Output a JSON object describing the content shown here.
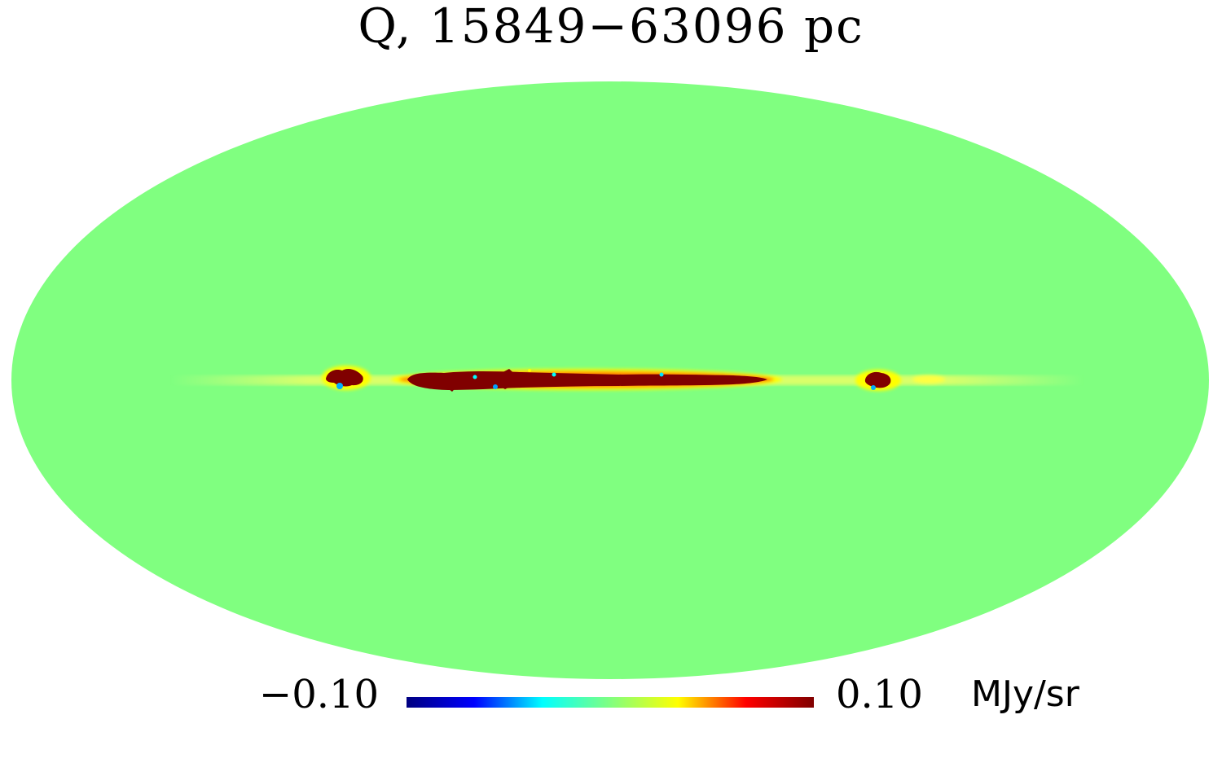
{
  "title": "Q, 15849−63096 pc",
  "projection": "mollweide",
  "background_color": "#80ff80",
  "colorbar": {
    "min_label": "−0.10",
    "max_label": "0.10",
    "unit": "MJy/sr",
    "colormap": "jet",
    "stops": [
      "#000080",
      "#0000ff",
      "#00ffff",
      "#80ff80",
      "#ffff00",
      "#ff0000",
      "#800000"
    ]
  },
  "features": [
    {
      "description": "galactic-plane-emission",
      "color": "#800000"
    },
    {
      "description": "compact-source-left",
      "color": "#800000"
    },
    {
      "description": "compact-source-right",
      "color": "#800000"
    }
  ]
}
